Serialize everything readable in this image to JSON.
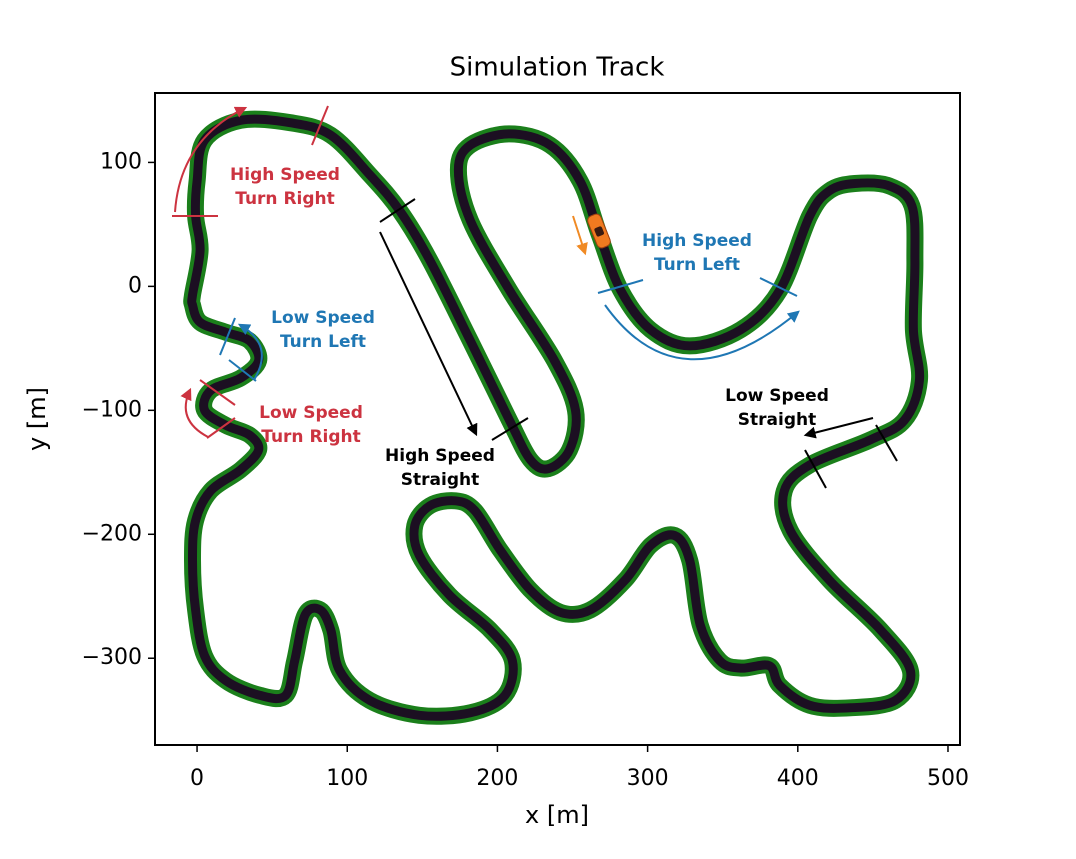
{
  "chart_data": {
    "type": "line",
    "title": "Simulation Track",
    "xlabel": "x [m]",
    "ylabel": "y [m]",
    "x": [
      -3,
      2,
      -1,
      0,
      5,
      29,
      62,
      89,
      115,
      135,
      155,
      182,
      208,
      222,
      234,
      248,
      252,
      238,
      208,
      182,
      174,
      182,
      208,
      235,
      255,
      268,
      282,
      302,
      328,
      362,
      388,
      408,
      421,
      438,
      461,
      476,
      478,
      477,
      481,
      471,
      448,
      408,
      391,
      395,
      421,
      455,
      475,
      465,
      435,
      408,
      388,
      381,
      362,
      348,
      335,
      328,
      318,
      302,
      285,
      262,
      242,
      222,
      202,
      185,
      172,
      155,
      145,
      148,
      168,
      195,
      210,
      205,
      182,
      148,
      115,
      95,
      89,
      82,
      72,
      65,
      59,
      42,
      19,
      5,
      -1,
      -3,
      -1,
      9,
      29,
      41,
      35,
      19,
      5,
      9,
      29,
      41,
      35,
      19,
      2,
      -3
    ],
    "values": [
      -7,
      29,
      57,
      85,
      118,
      134,
      132,
      122,
      90,
      61,
      21,
      -44,
      -108,
      -140,
      -147,
      -132,
      -100,
      -60,
      -3,
      53,
      94,
      114,
      123,
      114,
      85,
      41,
      -3,
      -35,
      -48,
      -35,
      -3,
      57,
      77,
      83,
      81,
      65,
      21,
      -35,
      -76,
      -108,
      -124,
      -144,
      -165,
      -197,
      -237,
      -277,
      -310,
      -334,
      -340,
      -338,
      -322,
      -306,
      -308,
      -302,
      -273,
      -221,
      -201,
      -209,
      -237,
      -261,
      -263,
      -245,
      -213,
      -181,
      -173,
      -177,
      -193,
      -217,
      -249,
      -277,
      -302,
      -330,
      -344,
      -346,
      -334,
      -310,
      -277,
      -261,
      -265,
      -302,
      -330,
      -330,
      -318,
      -298,
      -261,
      -221,
      -189,
      -165,
      -148,
      -132,
      -120,
      -112,
      -100,
      -84,
      -74,
      -60,
      -44,
      -37,
      -29,
      -15
    ],
    "closed": true,
    "color": "#1c0f22",
    "edge_color": "#1b7f1b",
    "xlim": [
      -28,
      508
    ],
    "ylim": [
      -370,
      156
    ],
    "xticks": [
      0,
      100,
      200,
      300,
      400,
      500
    ],
    "yticks": [
      {
        "value": -300,
        "label": "−300"
      },
      {
        "value": -200,
        "label": "−200"
      },
      {
        "value": -100,
        "label": "−100"
      },
      0,
      100
    ],
    "annotations": [
      {
        "lines": [
          "High Speed",
          "Turn Right"
        ],
        "color": "#cc3340"
      },
      {
        "lines": [
          "Low Speed",
          "Turn Left"
        ],
        "color": "#1f77b4"
      },
      {
        "lines": [
          "Low Speed",
          "Turn Right"
        ],
        "color": "#cc3340"
      },
      {
        "lines": [
          "High Speed",
          "Straight"
        ],
        "color": "#000000"
      },
      {
        "lines": [
          "High Speed",
          "Turn Left"
        ],
        "color": "#1f77b4"
      },
      {
        "lines": [
          "Low Speed",
          "Straight"
        ],
        "color": "#000000"
      }
    ]
  }
}
